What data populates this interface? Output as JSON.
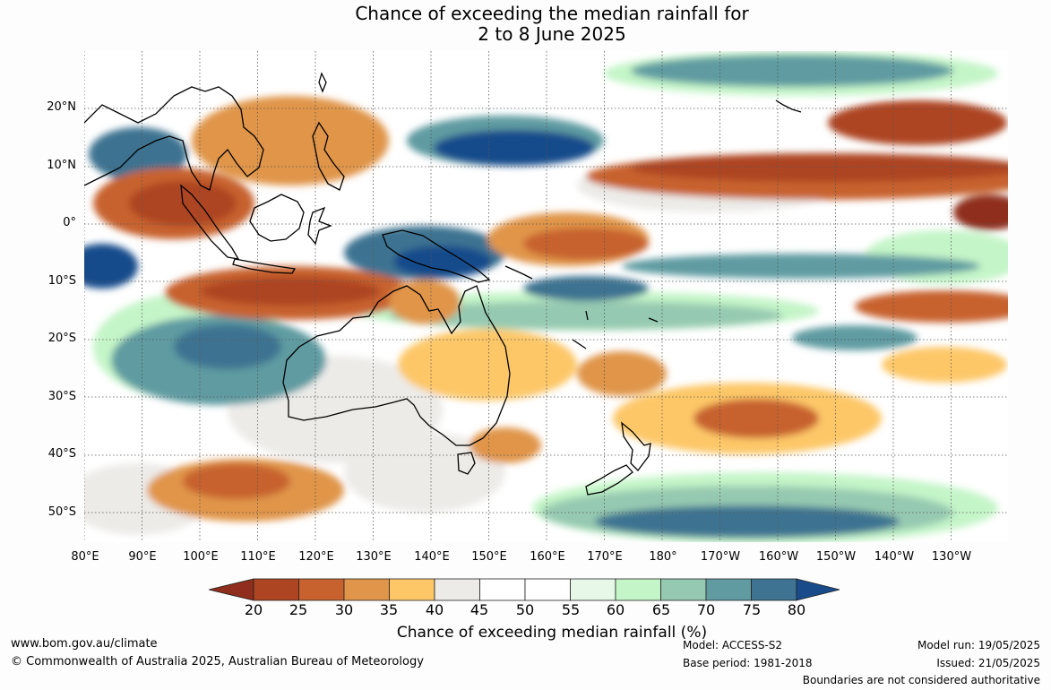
{
  "title_line1": "Chance of exceeding the median rainfall for",
  "title_line2": "2 to 8 June 2025",
  "lat_labels": [
    "20°N",
    "10°N",
    "0°",
    "10°S",
    "20°S",
    "30°S",
    "40°S",
    "50°S"
  ],
  "lon_labels": [
    "80°E",
    "90°E",
    "100°E",
    "110°E",
    "120°E",
    "130°E",
    "140°E",
    "150°E",
    "160°E",
    "170°E",
    "180°",
    "170°W",
    "160°W",
    "150°W",
    "140°W",
    "130°W"
  ],
  "colorbar": {
    "ticks": [
      "20",
      "25",
      "30",
      "35",
      "40",
      "45",
      "50",
      "55",
      "60",
      "65",
      "70",
      "75",
      "80"
    ],
    "label": "Chance of exceeding median rainfall (%)",
    "colors": [
      "#8f2e1c",
      "#ad4522",
      "#c7622f",
      "#e0954a",
      "#fdc768",
      "#ecebe8",
      "#ffffff",
      "#ffffff",
      "#e8f8e8",
      "#c4f5c8",
      "#96c9b1",
      "#5f9ba1",
      "#3e7391",
      "#194b8b"
    ]
  },
  "footer": {
    "url": "www.bom.gov.au/climate",
    "copyright": "© Commonwealth of Australia 2025, Australian Bureau of Meteorology",
    "model": "Model: ACCESS-S2",
    "base_period": "Base period: 1981-2018",
    "model_run": "Model run: 19/05/2025",
    "issued": "Issued: 21/05/2025",
    "boundaries": "Boundaries are not considered authoritative"
  }
}
